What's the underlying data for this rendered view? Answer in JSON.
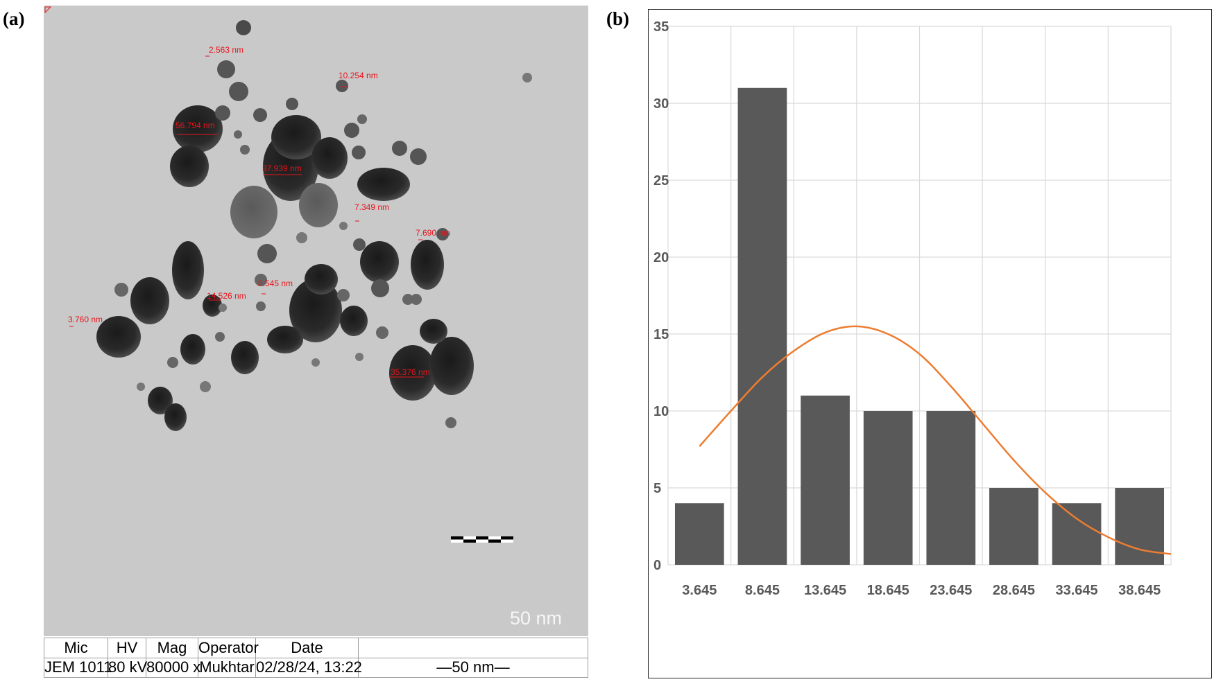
{
  "panels": {
    "a_label": "(a)",
    "b_label": "(b)"
  },
  "tem": {
    "measurements": [
      "2.563 nm",
      "10.254 nm",
      "56.794 nm",
      "37.939 nm",
      "7.349 nm",
      "7.690 nm",
      "8.545 nm",
      "14.526 nm",
      "3.760 nm",
      "35.376 nm"
    ],
    "scale_bar_label": "50 nm",
    "info_bar": {
      "headers": [
        "Mic",
        "HV",
        "Mag",
        "Operator",
        "Date",
        ""
      ],
      "values": [
        "JEM 1011",
        "80 kV",
        "80000 x",
        "Mukhtar",
        "02/28/24, 13:22",
        "—50 nm—"
      ]
    },
    "colors": {
      "background": "#c9c9c9",
      "particle": "#2a2a2a",
      "measurement": "#e8141c"
    }
  },
  "chart_data": {
    "type": "bar",
    "categories": [
      "3.645",
      "8.645",
      "13.645",
      "18.645",
      "23.645",
      "28.645",
      "33.645",
      "38.645"
    ],
    "values": [
      4,
      31,
      11,
      10,
      10,
      5,
      4,
      5
    ],
    "ylim": [
      0,
      35
    ],
    "yticks": [
      0,
      5,
      10,
      15,
      20,
      25,
      30,
      35
    ],
    "grid": true,
    "title": "",
    "xlabel": "",
    "ylabel": "",
    "fit_curve": {
      "type": "line",
      "x": [
        3.645,
        6.145,
        8.645,
        11.145,
        13.645,
        16.145,
        18.645,
        21.145,
        23.645,
        26.145,
        28.645,
        31.145,
        33.645,
        36.145,
        38.645,
        41.145
      ],
      "y": [
        7.7,
        10.0,
        12.2,
        13.9,
        15.1,
        15.5,
        15.0,
        13.7,
        11.6,
        9.2,
        6.8,
        4.7,
        3.0,
        1.8,
        1.0,
        0.7
      ],
      "color": "#ed7d31"
    },
    "colors": {
      "bar": "#595959",
      "grid": "#d9d9d9",
      "axis_text": "#595959"
    }
  }
}
